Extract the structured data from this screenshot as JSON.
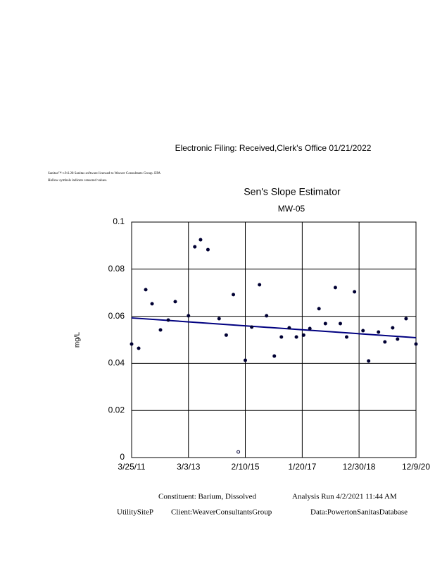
{
  "header": {
    "filing": "Electronic Filing: Received,Clerk's Office 01/21/2022",
    "license": "Sanitas™ v.9.6.28 Sanitas software licensed to Weaver Consultants Group. EPA",
    "note": "Hollow symbols indicate censored values."
  },
  "chart_data": {
    "type": "scatter",
    "title": "Sen's Slope Estimator",
    "subtitle": "MW-05",
    "y_label": "mg/L",
    "x": [
      "3/25/11",
      "6/21/11",
      "9/17/11",
      "12/5/11",
      "3/19/12",
      "6/24/12",
      "9/19/12",
      "3/3/13",
      "5/21/13",
      "8/1/13",
      "11/1/13",
      "3/20/14",
      "6/17/14",
      "9/14/14",
      "11/15/14",
      "2/10/15",
      "5/1/15",
      "8/6/15",
      "11/2/15",
      "2/7/16",
      "5/5/16",
      "8/11/16",
      "11/8/16",
      "2/6/17",
      "4/25/17",
      "8/17/17",
      "11/5/17",
      "3/9/18",
      "5/10/18",
      "7/28/18",
      "11/3/18",
      "2/17/19",
      "4/28/19",
      "8/29/19",
      "11/17/19",
      "2/22/20",
      "4/23/20",
      "8/7/20",
      "12/9/20"
    ],
    "values": [
      0.0482,
      0.0464,
      0.0713,
      0.0653,
      0.0542,
      0.0584,
      0.0662,
      0.0602,
      0.0895,
      0.0925,
      0.0883,
      0.059,
      0.052,
      0.0692,
      0.0024,
      0.0413,
      0.0554,
      0.0734,
      0.0602,
      0.0431,
      0.0512,
      0.0551,
      0.0512,
      0.052,
      0.0548,
      0.0632,
      0.0569,
      0.0722,
      0.0569,
      0.0512,
      0.0704,
      0.0539,
      0.041,
      0.0533,
      0.0491,
      0.0551,
      0.0503,
      0.059,
      0.0482
    ],
    "hollow": [
      false,
      false,
      false,
      false,
      false,
      false,
      false,
      false,
      false,
      false,
      false,
      false,
      false,
      false,
      true,
      false,
      false,
      false,
      false,
      false,
      false,
      false,
      false,
      false,
      false,
      false,
      false,
      false,
      false,
      false,
      false,
      false,
      false,
      false,
      false,
      false,
      false,
      false,
      false
    ],
    "color": "#000033",
    "trend": {
      "x": [
        "3/25/11",
        "12/9/20"
      ],
      "values": [
        0.0593,
        0.0509
      ],
      "color": "#000080"
    },
    "xlim": [
      "3/25/11",
      "12/9/20"
    ],
    "xticks": [
      "3/25/11",
      "3/3/13",
      "2/10/15",
      "1/20/17",
      "12/30/18",
      "12/9/20"
    ],
    "ylim": [
      0,
      0.1
    ],
    "yticks": [
      0,
      0.02,
      0.04,
      0.06,
      0.08,
      0.1
    ],
    "grid": true
  },
  "footer": {
    "constituent": "Constituent: Barium, Dissolved",
    "run": "Analysis Run 4/2/2021 11:44 AM",
    "site": "UtilitySiteP",
    "client": "Client:WeaverConsultantsGroup",
    "data": "Data:PowertonSanitasDatabase"
  }
}
